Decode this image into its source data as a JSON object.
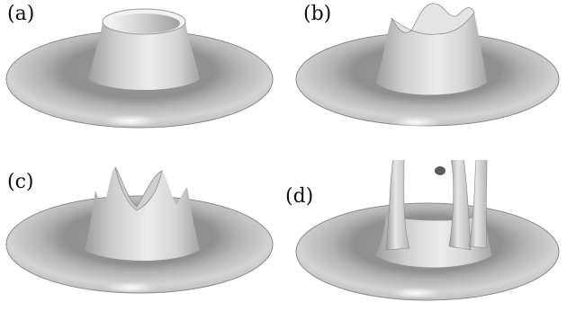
{
  "panels": [
    {
      "label": "(a)"
    },
    {
      "label": "(b)"
    },
    {
      "label": "(c)"
    },
    {
      "label": "(d)"
    }
  ],
  "colors": {
    "background": "#ffffff",
    "surface_light": "#f4f4f4",
    "surface_mid": "#c6c6c6",
    "surface_dark": "#8e8e8e",
    "label_text": "#111111"
  }
}
